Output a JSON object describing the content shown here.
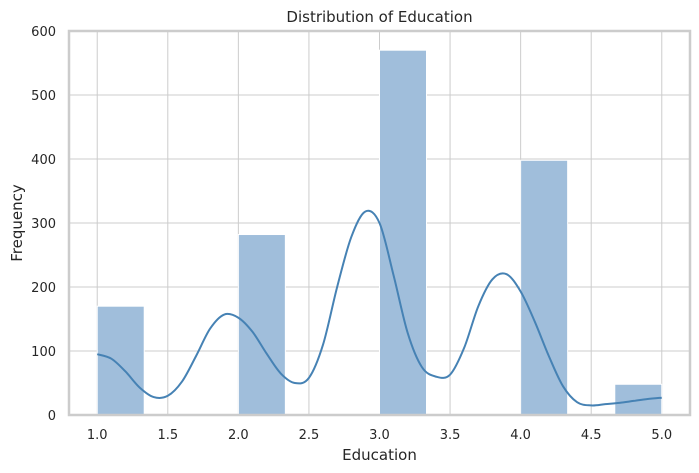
{
  "chart_data": {
    "type": "bar",
    "title": "Distribution of Education",
    "xlabel": "Education",
    "ylabel": "Frequency",
    "xlim": [
      0.8,
      5.2
    ],
    "ylim": [
      0,
      600
    ],
    "xticks": [
      1.0,
      1.5,
      2.0,
      2.5,
      3.0,
      3.5,
      4.0,
      4.5,
      5.0
    ],
    "xtick_labels": [
      "1.0",
      "1.5",
      "2.0",
      "2.5",
      "3.0",
      "3.5",
      "4.0",
      "4.5",
      "5.0"
    ],
    "yticks": [
      0,
      100,
      200,
      300,
      400,
      500,
      600
    ],
    "ytick_labels": [
      "0",
      "100",
      "200",
      "300",
      "400",
      "500",
      "600"
    ],
    "grid": true,
    "bins": [
      {
        "start": 1.0,
        "end": 1.333,
        "count": 170
      },
      {
        "start": 1.333,
        "end": 1.667,
        "count": 0
      },
      {
        "start": 1.667,
        "end": 2.0,
        "count": 0
      },
      {
        "start": 2.0,
        "end": 2.333,
        "count": 282
      },
      {
        "start": 2.333,
        "end": 2.667,
        "count": 0
      },
      {
        "start": 2.667,
        "end": 3.0,
        "count": 0
      },
      {
        "start": 3.0,
        "end": 3.333,
        "count": 570
      },
      {
        "start": 3.333,
        "end": 3.667,
        "count": 0
      },
      {
        "start": 3.667,
        "end": 4.0,
        "count": 0
      },
      {
        "start": 4.0,
        "end": 4.333,
        "count": 398
      },
      {
        "start": 4.333,
        "end": 4.667,
        "count": 0
      },
      {
        "start": 4.667,
        "end": 5.0,
        "count": 48
      }
    ],
    "kde": {
      "x": [
        1.0,
        1.1,
        1.2,
        1.3,
        1.4,
        1.5,
        1.6,
        1.7,
        1.8,
        1.9,
        2.0,
        2.1,
        2.2,
        2.3,
        2.4,
        2.5,
        2.6,
        2.7,
        2.8,
        2.9,
        3.0,
        3.1,
        3.2,
        3.3,
        3.4,
        3.5,
        3.6,
        3.7,
        3.8,
        3.9,
        4.0,
        4.1,
        4.2,
        4.3,
        4.4,
        4.5,
        4.6,
        4.7,
        4.8,
        4.9,
        5.0
      ],
      "y": [
        95,
        88,
        68,
        43,
        28,
        30,
        52,
        92,
        135,
        157,
        152,
        130,
        96,
        65,
        50,
        58,
        110,
        200,
        278,
        318,
        300,
        218,
        128,
        75,
        60,
        63,
        105,
        170,
        212,
        220,
        193,
        146,
        92,
        45,
        20,
        15,
        17,
        19,
        22,
        25,
        27
      ]
    },
    "colors": {
      "bar_fill": "#a0bedb",
      "bar_edge": "#ffffff",
      "kde_line": "#4682b4"
    }
  }
}
